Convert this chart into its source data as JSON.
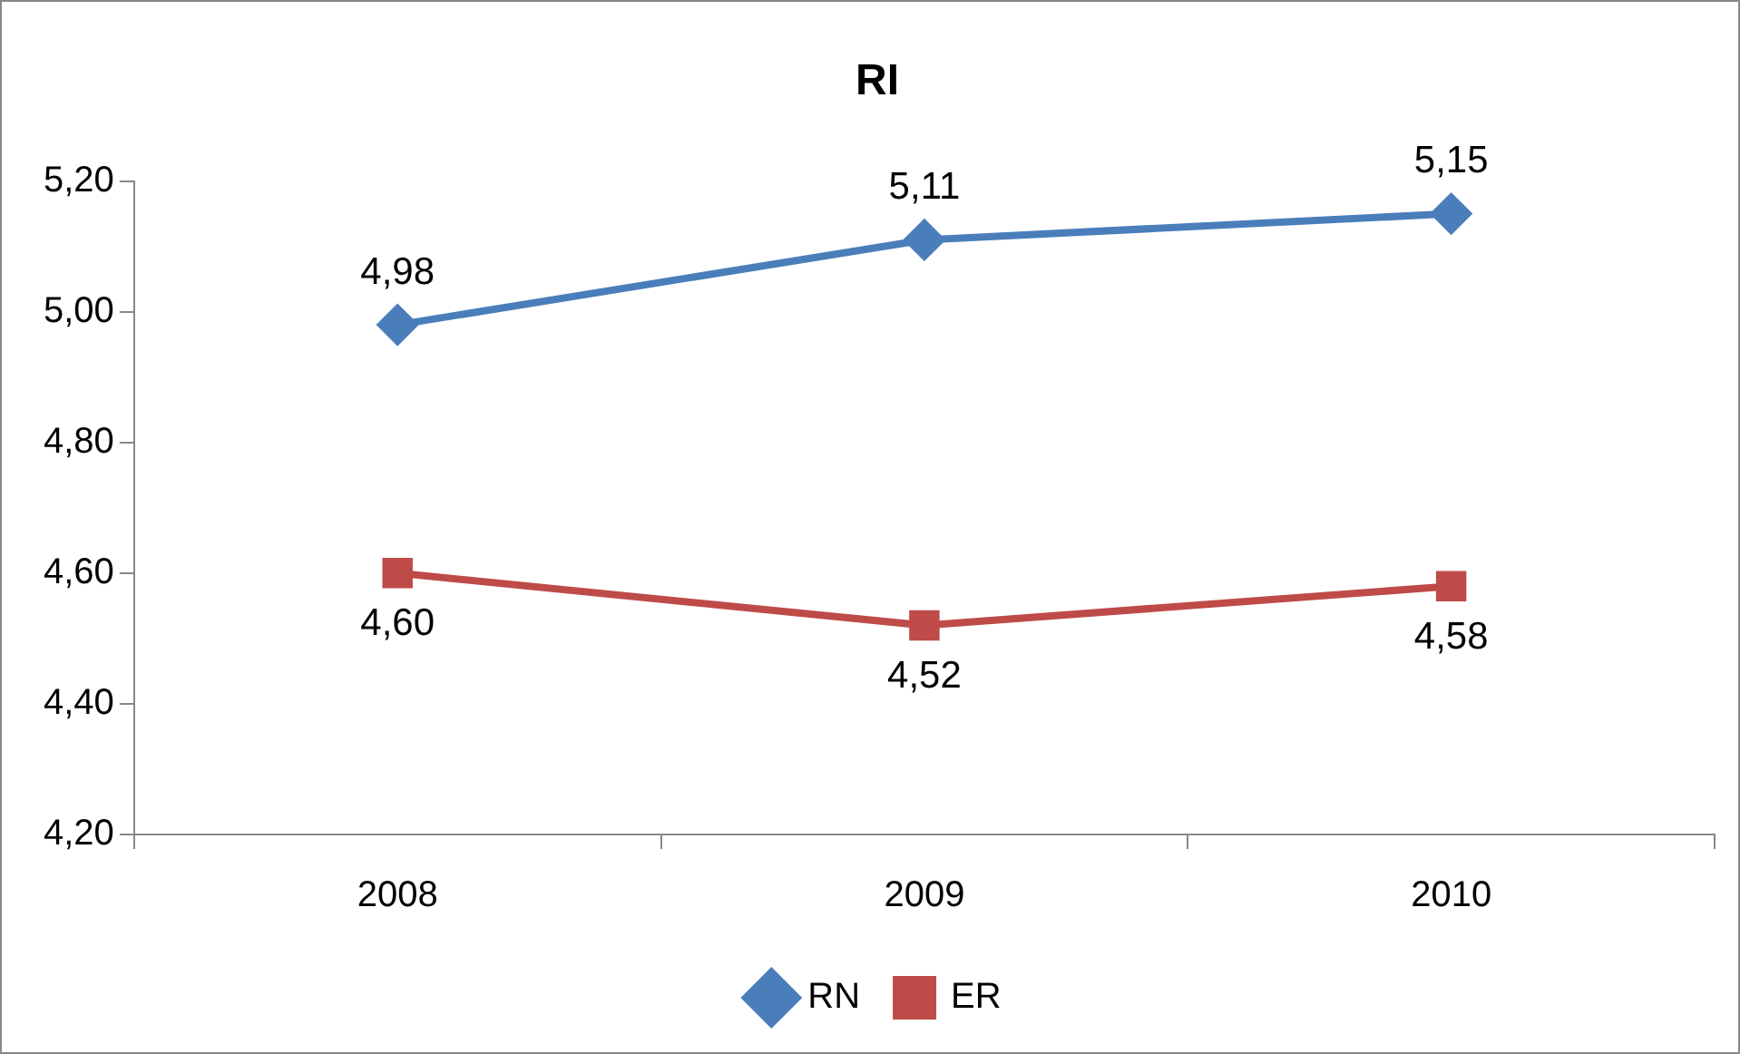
{
  "chart_data": {
    "type": "line",
    "title": "RI",
    "categories": [
      "2008",
      "2009",
      "2010"
    ],
    "series": [
      {
        "name": "RN",
        "color": "#4a7ebb",
        "values": [
          4.98,
          5.11,
          5.15
        ],
        "value_labels": [
          "4,98",
          "5,11",
          "5,15"
        ],
        "marker": "diamond"
      },
      {
        "name": "ER",
        "color": "#be4b48",
        "values": [
          4.6,
          4.52,
          4.58
        ],
        "value_labels": [
          "4,60",
          "4,52",
          "4,58"
        ],
        "marker": "square"
      }
    ],
    "ylim": [
      4.2,
      5.2
    ],
    "yticks": [
      {
        "value": 4.2,
        "label": "4,20"
      },
      {
        "value": 4.4,
        "label": "4,40"
      },
      {
        "value": 4.6,
        "label": "4,60"
      },
      {
        "value": 4.8,
        "label": "4,80"
      },
      {
        "value": 5.0,
        "label": "5,00"
      },
      {
        "value": 5.2,
        "label": "5,20"
      }
    ],
    "grid": false,
    "legend": "bottom",
    "line_style": "solid"
  }
}
